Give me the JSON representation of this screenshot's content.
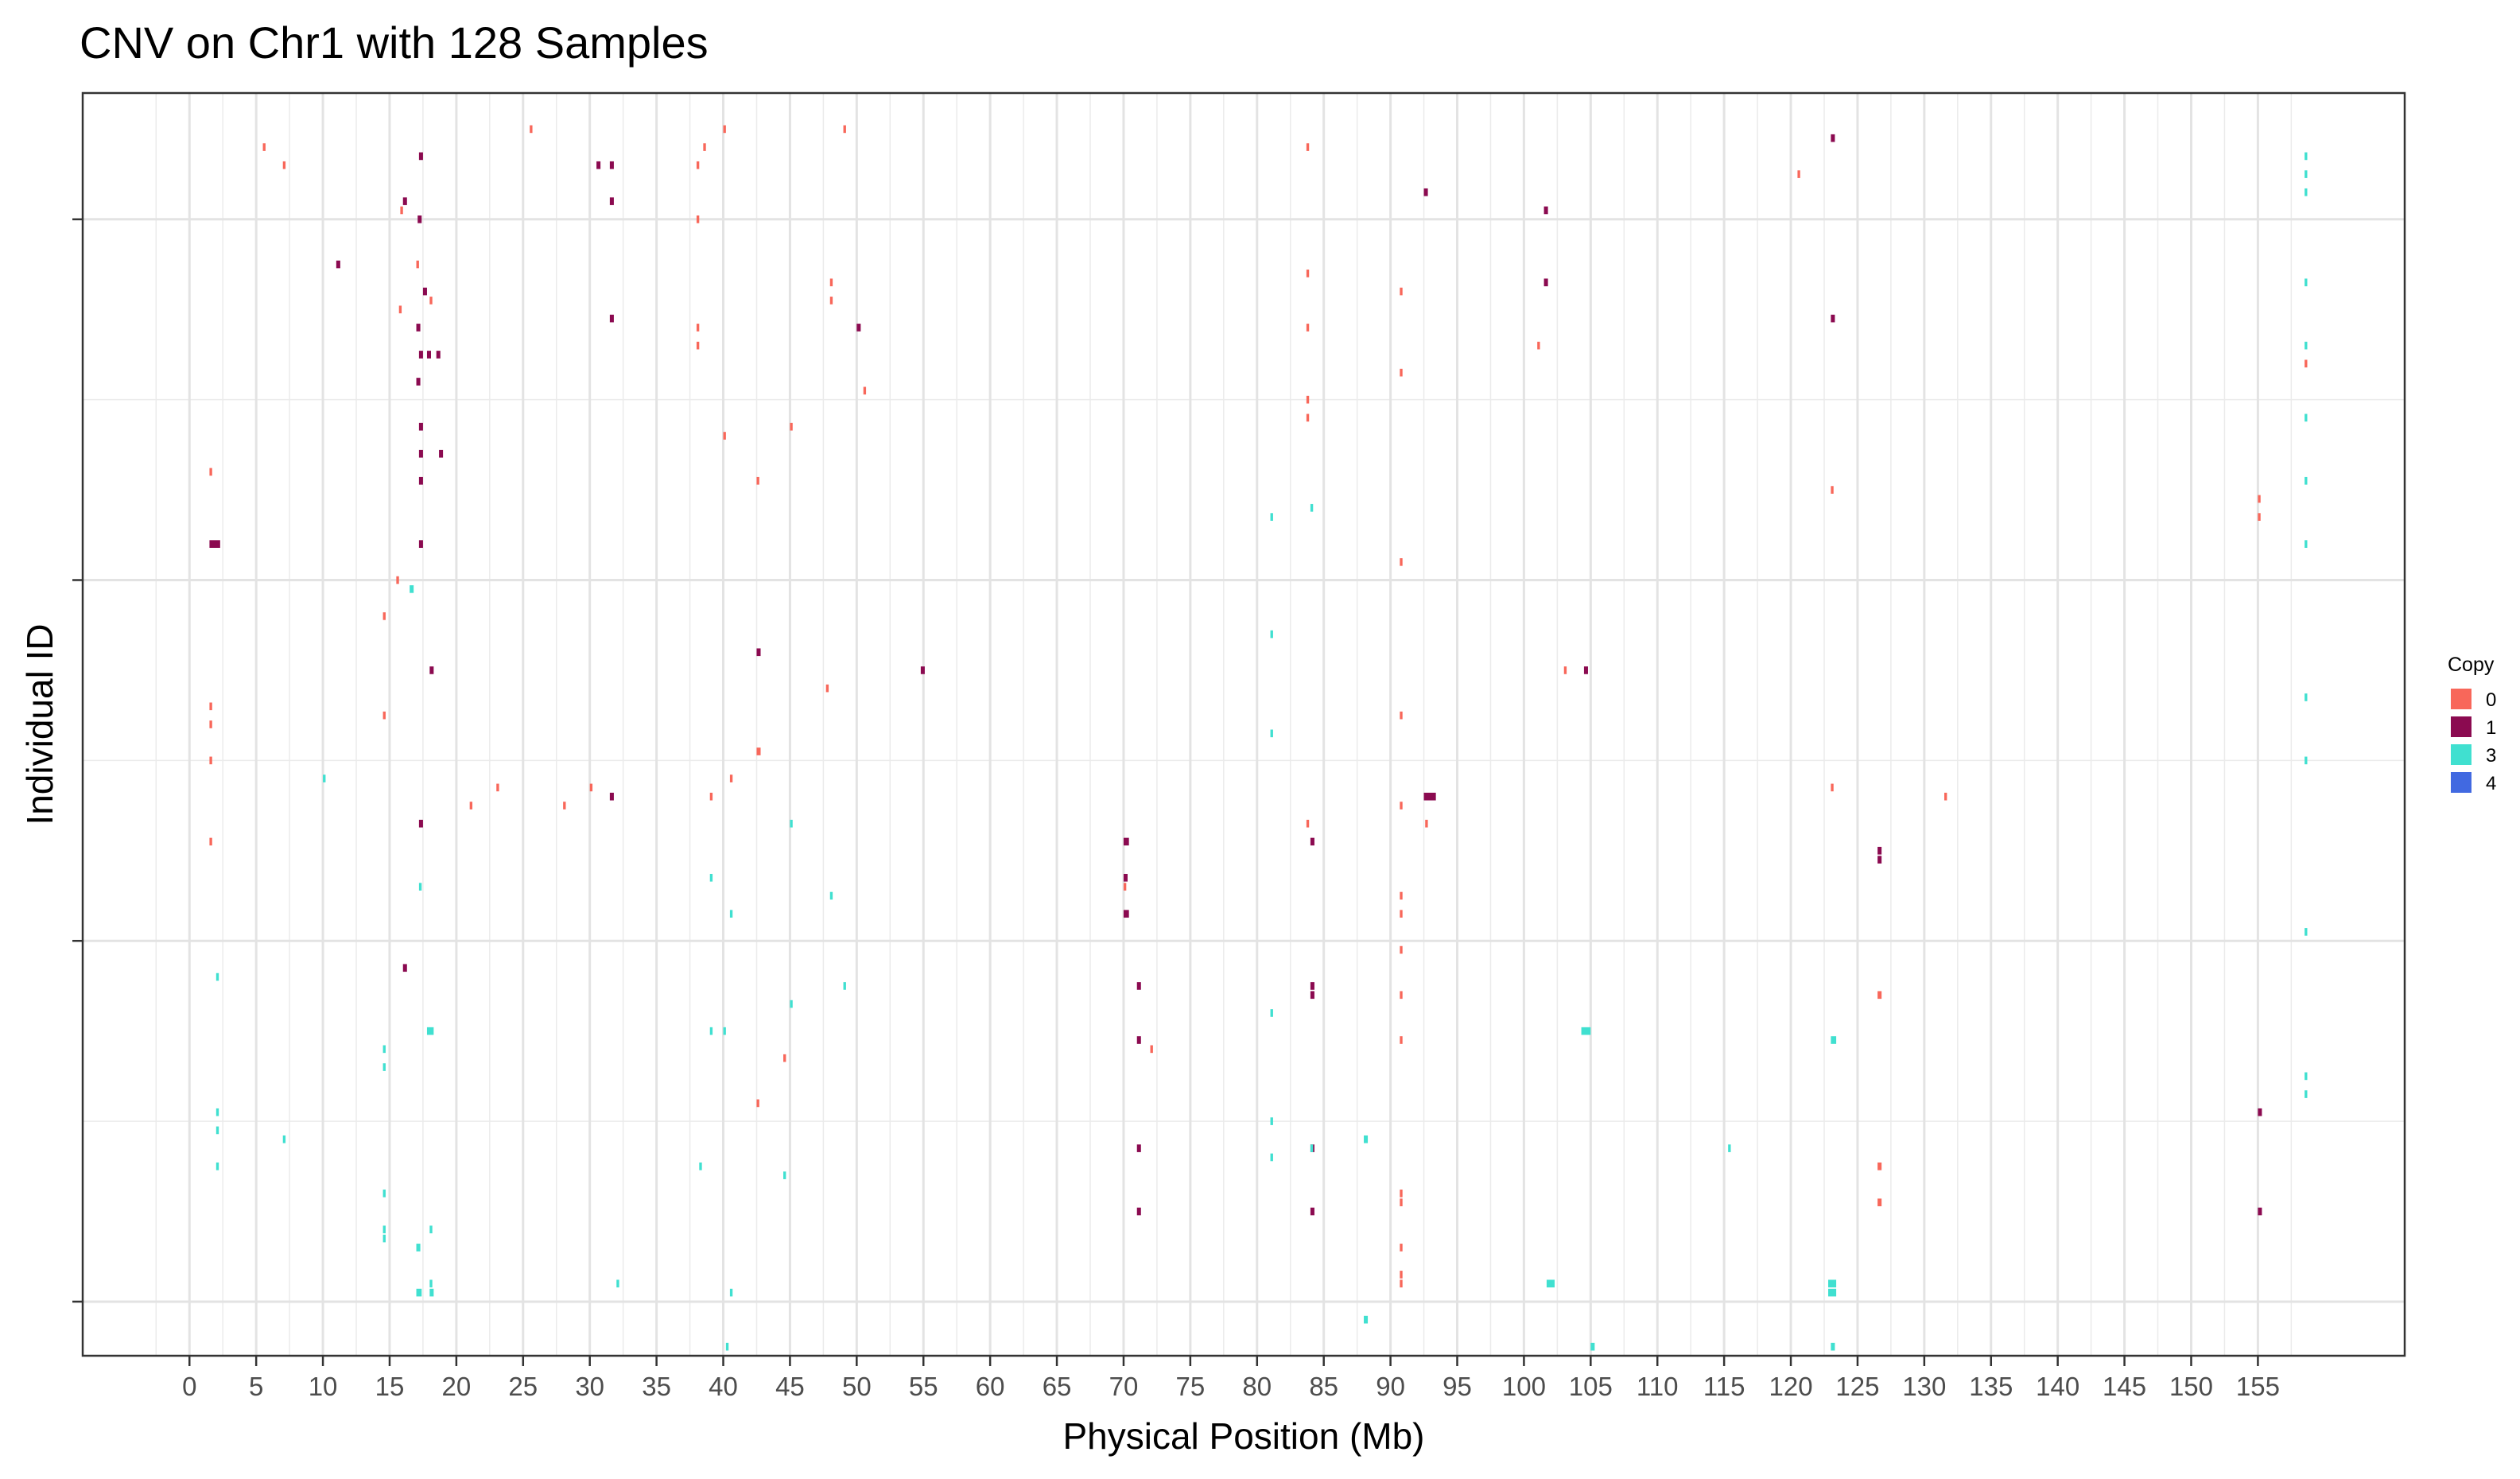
{
  "chart_data": {
    "type": "heatmap",
    "title": "CNV on Chr1 with 128 Samples",
    "xlabel": "Physical Position (Mb)",
    "ylabel": "Individual ID",
    "xlim": [
      -8,
      166
    ],
    "ylim": [
      0,
      140
    ],
    "x_ticks": [
      0,
      5,
      10,
      15,
      20,
      25,
      30,
      35,
      40,
      45,
      50,
      55,
      60,
      65,
      70,
      75,
      80,
      85,
      90,
      95,
      100,
      105,
      110,
      115,
      120,
      125,
      130,
      135,
      140,
      145,
      150,
      155
    ],
    "y_ticks": [
      6,
      46,
      86,
      126
    ],
    "grid": true,
    "legend": {
      "title": "Copy",
      "placement": "right",
      "entries": [
        {
          "label": "0",
          "color": "#f8675a"
        },
        {
          "label": "1",
          "color": "#8b0a50"
        },
        {
          "label": "3",
          "color": "#40e0d0"
        },
        {
          "label": "4",
          "color": "#4169e1"
        }
      ]
    },
    "series": [
      {
        "copy": "1",
        "segments": [
          [
            17.2,
            17.5,
            133
          ],
          [
            16,
            16.3,
            128
          ],
          [
            17.1,
            17.4,
            126
          ],
          [
            11,
            11.3,
            121
          ],
          [
            17.5,
            17.8,
            118
          ],
          [
            17,
            17.3,
            114
          ],
          [
            17.2,
            17.5,
            111
          ],
          [
            17.8,
            18.1,
            111
          ],
          [
            18.5,
            18.8,
            111
          ],
          [
            17,
            17.3,
            108
          ],
          [
            17.2,
            17.5,
            103
          ],
          [
            17.2,
            17.5,
            100
          ],
          [
            18.7,
            19,
            100
          ],
          [
            17.2,
            17.5,
            97
          ],
          [
            17.2,
            17.5,
            90
          ],
          [
            1.5,
            2.3,
            90
          ],
          [
            30.5,
            30.8,
            132
          ],
          [
            31.5,
            31.8,
            132
          ],
          [
            31.5,
            31.8,
            128
          ],
          [
            31.5,
            31.8,
            115
          ],
          [
            50,
            50.3,
            114
          ],
          [
            18,
            18.3,
            76
          ],
          [
            17.2,
            17.5,
            59
          ],
          [
            16,
            16.3,
            43
          ],
          [
            31.5,
            31.8,
            62
          ],
          [
            92.5,
            93.4,
            62
          ],
          [
            70,
            70.4,
            57
          ],
          [
            70,
            70.3,
            53
          ],
          [
            70,
            70.4,
            49
          ],
          [
            84,
            84.3,
            57
          ],
          [
            84,
            84.3,
            41
          ],
          [
            71,
            71.3,
            41
          ],
          [
            71,
            71.3,
            35
          ],
          [
            84,
            84.3,
            40
          ],
          [
            84,
            84.3,
            23
          ],
          [
            84,
            84.3,
            16
          ],
          [
            123,
            123.3,
            135
          ],
          [
            123,
            123.3,
            115
          ],
          [
            126.5,
            126.8,
            55
          ],
          [
            126.5,
            126.8,
            56
          ],
          [
            101.5,
            101.8,
            119
          ],
          [
            101.5,
            101.8,
            127
          ],
          [
            104.5,
            104.8,
            76
          ],
          [
            42.5,
            42.8,
            78
          ],
          [
            54.8,
            55.1,
            76
          ],
          [
            92.5,
            92.8,
            129
          ],
          [
            71,
            71.3,
            23
          ],
          [
            71,
            71.3,
            16
          ],
          [
            155,
            155.3,
            16
          ],
          [
            155,
            155.3,
            27
          ]
        ]
      },
      {
        "copy": "0",
        "segments": [
          [
            5.5,
            5.7,
            134
          ],
          [
            7,
            7.2,
            132
          ],
          [
            15.8,
            16,
            127
          ],
          [
            17,
            17.2,
            121
          ],
          [
            15.7,
            15.9,
            116
          ],
          [
            18,
            18.2,
            117
          ],
          [
            38,
            38.2,
            132
          ],
          [
            38,
            38.2,
            126
          ],
          [
            38,
            38.2,
            114
          ],
          [
            38,
            38.2,
            112
          ],
          [
            48,
            48.2,
            119
          ],
          [
            48,
            48.2,
            117
          ],
          [
            45,
            45.2,
            103
          ],
          [
            50.5,
            50.7,
            107
          ],
          [
            1.5,
            1.7,
            98
          ],
          [
            15.5,
            15.7,
            86
          ],
          [
            14.5,
            14.7,
            82
          ],
          [
            1.5,
            1.7,
            72
          ],
          [
            1.5,
            1.7,
            70
          ],
          [
            1.5,
            1.7,
            66
          ],
          [
            14.5,
            14.7,
            71
          ],
          [
            21,
            21.2,
            61
          ],
          [
            23,
            23.2,
            63
          ],
          [
            28,
            28.2,
            61
          ],
          [
            30,
            30.2,
            63
          ],
          [
            39,
            39.2,
            62
          ],
          [
            40.5,
            40.7,
            64
          ],
          [
            42.5,
            42.8,
            67
          ],
          [
            40,
            40.2,
            102
          ],
          [
            42.5,
            42.7,
            97
          ],
          [
            47.7,
            47.9,
            74
          ],
          [
            1.5,
            1.7,
            57
          ],
          [
            83.7,
            83.9,
            134
          ],
          [
            83.7,
            83.9,
            120
          ],
          [
            83.7,
            83.9,
            114
          ],
          [
            83.7,
            83.9,
            106
          ],
          [
            83.7,
            83.9,
            104
          ],
          [
            90.7,
            90.9,
            118
          ],
          [
            90.7,
            90.9,
            109
          ],
          [
            90.7,
            90.9,
            88
          ],
          [
            90.7,
            90.9,
            61
          ],
          [
            90.7,
            90.9,
            71
          ],
          [
            92.6,
            92.8,
            59
          ],
          [
            83.7,
            83.9,
            59
          ],
          [
            90.7,
            90.9,
            51
          ],
          [
            90.7,
            90.9,
            49
          ],
          [
            90.7,
            90.9,
            45
          ],
          [
            90.7,
            90.9,
            40
          ],
          [
            90.7,
            90.9,
            35
          ],
          [
            90.7,
            90.9,
            18
          ],
          [
            90.7,
            90.9,
            17
          ],
          [
            90.7,
            90.9,
            12
          ],
          [
            90.7,
            90.9,
            9
          ],
          [
            90.7,
            90.9,
            8
          ],
          [
            101,
            101.2,
            112
          ],
          [
            103,
            103.2,
            76
          ],
          [
            120.5,
            120.7,
            131
          ],
          [
            123,
            123.2,
            96
          ],
          [
            123,
            123.2,
            63
          ],
          [
            126.5,
            126.8,
            40
          ],
          [
            126.5,
            126.8,
            21
          ],
          [
            126.5,
            126.8,
            17
          ],
          [
            131.5,
            131.7,
            62
          ],
          [
            155,
            155.2,
            95
          ],
          [
            155,
            155.2,
            93
          ],
          [
            158.5,
            158.7,
            110
          ],
          [
            25.5,
            25.7,
            136
          ],
          [
            38.5,
            38.7,
            134
          ],
          [
            40,
            40.2,
            136
          ],
          [
            49,
            49.2,
            136
          ],
          [
            42.5,
            42.7,
            28
          ],
          [
            44.5,
            44.7,
            33
          ],
          [
            70,
            70.2,
            52
          ],
          [
            72,
            72.2,
            34
          ]
        ]
      },
      {
        "copy": "3",
        "segments": [
          [
            158.5,
            158.7,
            133
          ],
          [
            158.5,
            158.7,
            131
          ],
          [
            158.5,
            158.7,
            129
          ],
          [
            158.5,
            158.7,
            119
          ],
          [
            158.5,
            158.7,
            112
          ],
          [
            158.5,
            158.7,
            104
          ],
          [
            158.5,
            158.7,
            97
          ],
          [
            158.5,
            158.7,
            90
          ],
          [
            158.5,
            158.7,
            73
          ],
          [
            158.5,
            158.7,
            66
          ],
          [
            158.5,
            158.7,
            47
          ],
          [
            158.5,
            158.7,
            31
          ],
          [
            158.5,
            158.7,
            29
          ],
          [
            16.5,
            16.8,
            85
          ],
          [
            81,
            81.2,
            80
          ],
          [
            81,
            81.2,
            69
          ],
          [
            81,
            81.2,
            93
          ],
          [
            84,
            84.2,
            94
          ],
          [
            17.2,
            17.4,
            52
          ],
          [
            2,
            2.2,
            42
          ],
          [
            14.5,
            14.7,
            34
          ],
          [
            14.5,
            14.7,
            32
          ],
          [
            17.8,
            18.3,
            36
          ],
          [
            2,
            2.2,
            27
          ],
          [
            2,
            2.2,
            25
          ],
          [
            2,
            2.2,
            21
          ],
          [
            7,
            7.2,
            24
          ],
          [
            14.5,
            14.7,
            18
          ],
          [
            14.5,
            14.7,
            14
          ],
          [
            14.5,
            14.7,
            13
          ],
          [
            17,
            17.3,
            12
          ],
          [
            17,
            17.4,
            7
          ],
          [
            18,
            18.3,
            7
          ],
          [
            18,
            18.2,
            8
          ],
          [
            32,
            32.2,
            8
          ],
          [
            40.5,
            40.7,
            7
          ],
          [
            39,
            39.2,
            36
          ],
          [
            40,
            40.2,
            36
          ],
          [
            44.5,
            44.7,
            20
          ],
          [
            48,
            48.2,
            51
          ],
          [
            45,
            45.2,
            39
          ],
          [
            45,
            45.2,
            59
          ],
          [
            40.5,
            40.7,
            49
          ],
          [
            39,
            39.2,
            53
          ],
          [
            10,
            10.2,
            64
          ],
          [
            88,
            88.3,
            24
          ],
          [
            88,
            88.3,
            4
          ],
          [
            81,
            81.2,
            26
          ],
          [
            81,
            81.2,
            22
          ],
          [
            84,
            84.2,
            23
          ],
          [
            104.3,
            105,
            36
          ],
          [
            101.7,
            102.3,
            8
          ],
          [
            105,
            105.3,
            1
          ],
          [
            115.3,
            115.5,
            23
          ],
          [
            123,
            123.4,
            35
          ],
          [
            122.8,
            123.4,
            8
          ],
          [
            122.8,
            123.4,
            7
          ],
          [
            123,
            123.3,
            1
          ],
          [
            18,
            18.2,
            14
          ],
          [
            49,
            49.2,
            41
          ],
          [
            81,
            81.2,
            38
          ],
          [
            40.2,
            40.4,
            1
          ],
          [
            38.2,
            38.4,
            21
          ]
        ]
      }
    ]
  }
}
